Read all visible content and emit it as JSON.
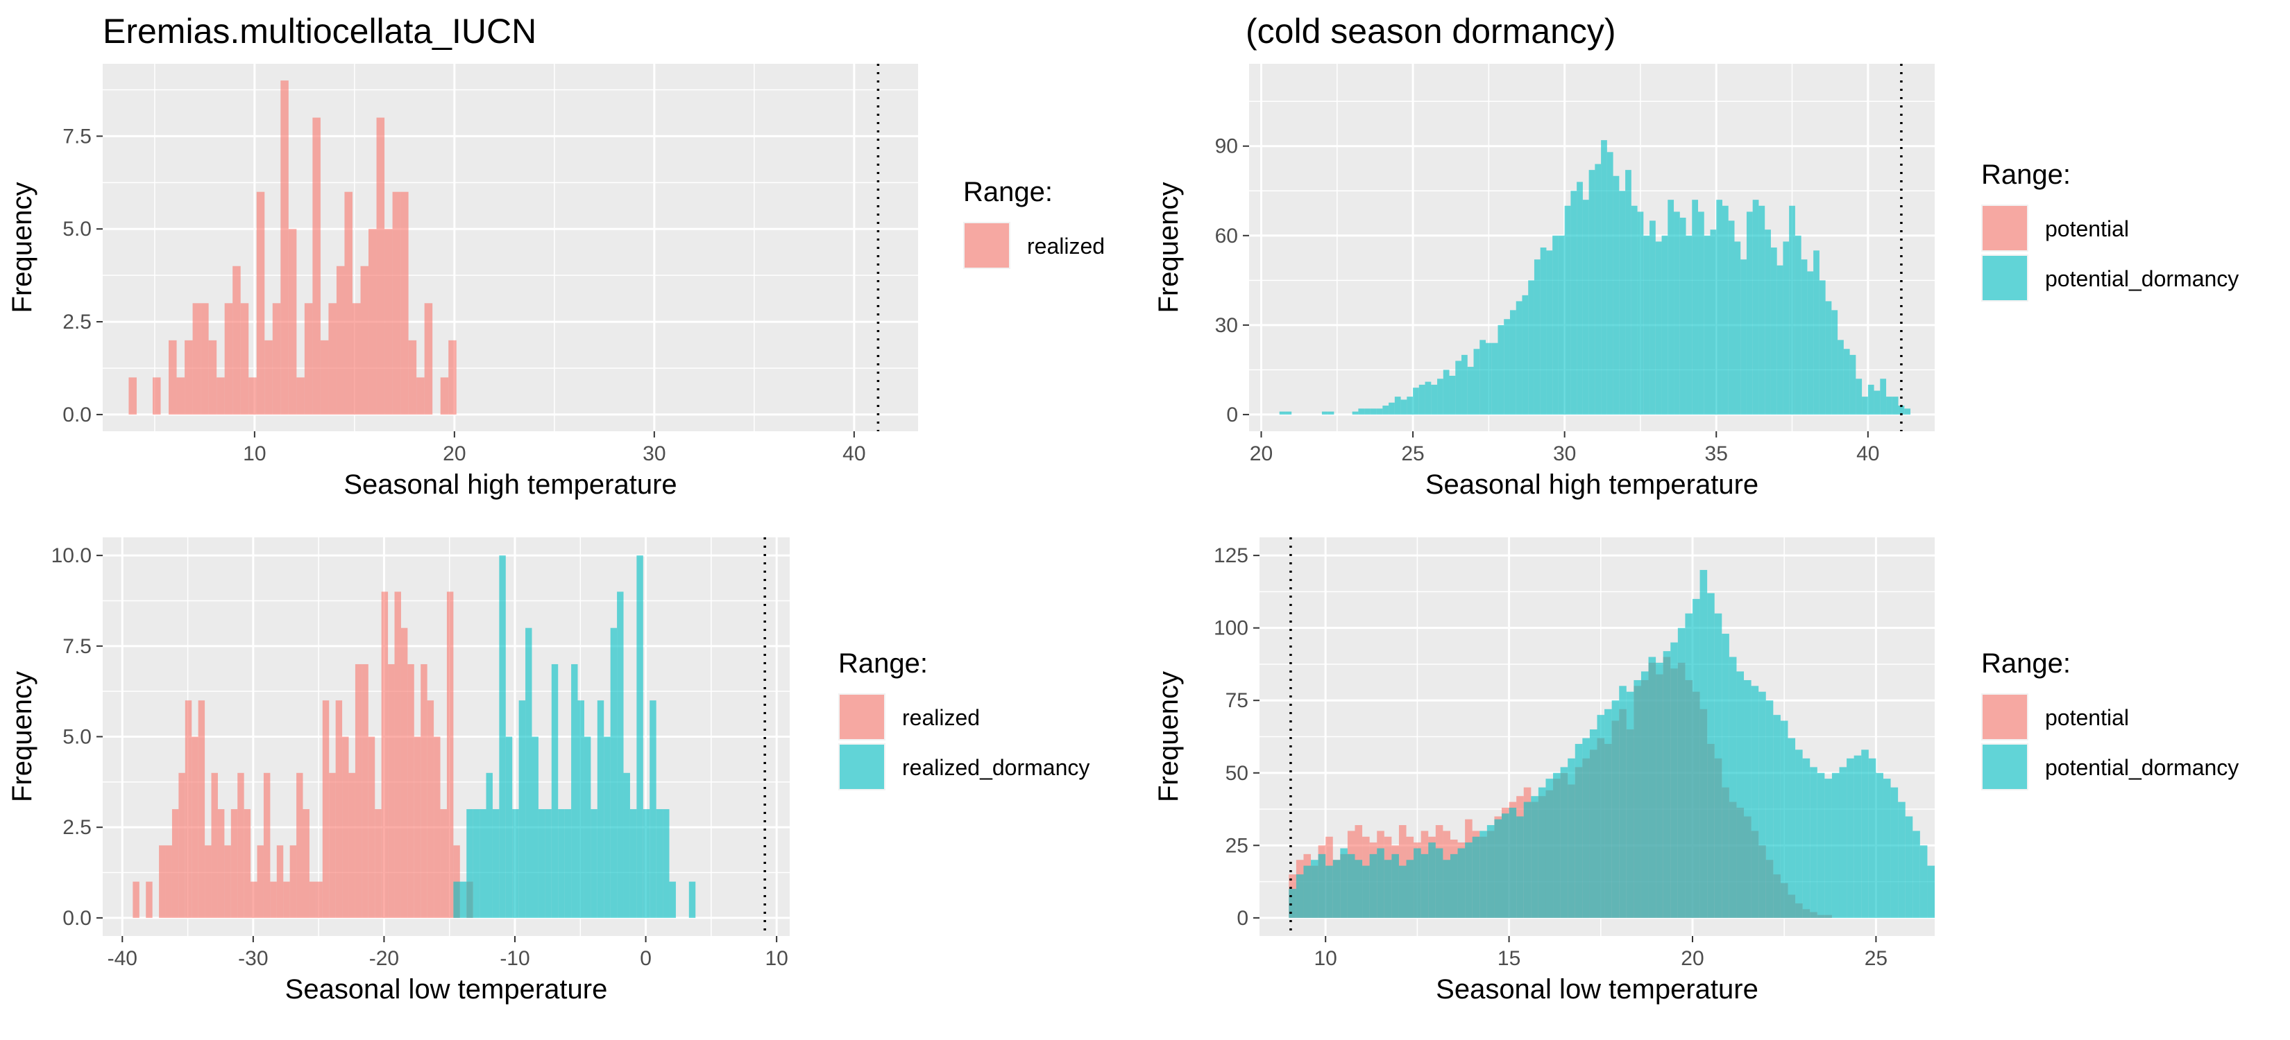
{
  "titles": {
    "left": "Eremias.multiocellata_IUCN",
    "right": "(cold season dormancy)"
  },
  "colors": {
    "realized": "#f8766d",
    "realized_dormancy": "#00bfc4",
    "potential": "#f8766d",
    "potential_dormancy": "#00bfc4",
    "panel_bg": "#ebebeb",
    "grid": "#ffffff"
  },
  "chart_data": [
    {
      "id": "p1",
      "type": "histogram",
      "xlabel": "Seasonal high temperature",
      "ylabel": "Frequency",
      "xlim": [
        2.4,
        43.2
      ],
      "ylim": [
        -0.45,
        9.45
      ],
      "xticks": [
        {
          "v": 10,
          "l": "10"
        },
        {
          "v": 20,
          "l": "20"
        },
        {
          "v": 30,
          "l": "30"
        },
        {
          "v": 40,
          "l": "40"
        }
      ],
      "yticks": [
        {
          "v": 0,
          "l": "0.0"
        },
        {
          "v": 2.5,
          "l": "2.5"
        },
        {
          "v": 5,
          "l": "5.0"
        },
        {
          "v": 7.5,
          "l": "7.5"
        }
      ],
      "vline": 41.2,
      "bin_start": 3.7,
      "bin_width": 0.4,
      "legend": {
        "title": "Range:",
        "labels": [
          "realized"
        ]
      },
      "series": [
        {
          "name": "realized",
          "color": "#f8766d",
          "values": [
            1,
            0,
            0,
            1,
            0,
            2,
            1,
            2,
            3,
            3,
            2,
            1,
            3,
            4,
            3,
            1,
            6,
            2,
            3,
            9,
            5,
            1,
            3,
            8,
            2,
            3,
            4,
            6,
            3,
            4,
            5,
            8,
            5,
            6,
            6,
            2,
            1,
            3,
            0,
            1,
            2
          ]
        }
      ]
    },
    {
      "id": "p2",
      "type": "histogram",
      "xlabel": "Seasonal high temperature",
      "ylabel": "Frequency",
      "xlim": [
        19.6,
        42.2
      ],
      "ylim": [
        -5.6,
        117.6
      ],
      "xticks": [
        {
          "v": 20,
          "l": "20"
        },
        {
          "v": 25,
          "l": "25"
        },
        {
          "v": 30,
          "l": "30"
        },
        {
          "v": 35,
          "l": "35"
        },
        {
          "v": 40,
          "l": "40"
        }
      ],
      "yticks": [
        {
          "v": 0,
          "l": "0"
        },
        {
          "v": 30,
          "l": "30"
        },
        {
          "v": 60,
          "l": "60"
        },
        {
          "v": 90,
          "l": "90"
        }
      ],
      "vline": 41.1,
      "bin_start": 20.4,
      "bin_width": 0.2,
      "legend": {
        "title": "Range:",
        "labels": [
          "potential",
          "potential_dormancy"
        ]
      },
      "series": [
        {
          "name": "potential",
          "color": "#f8766d",
          "values": [
            0,
            0,
            0,
            0,
            0,
            0,
            0,
            0,
            0,
            0,
            0,
            0,
            0,
            0,
            0,
            0,
            0,
            0,
            0,
            0,
            0,
            0,
            0,
            0,
            0,
            0,
            0,
            0,
            0,
            0,
            0,
            0,
            0,
            0,
            0,
            0,
            0,
            0,
            0,
            0,
            0,
            0,
            0,
            0,
            0,
            0,
            0,
            0,
            0,
            0,
            0,
            0,
            0,
            0,
            0,
            0,
            0,
            0,
            0,
            0,
            0,
            0,
            0,
            0,
            0,
            0,
            0,
            0,
            0,
            0,
            0,
            0,
            0,
            0,
            0,
            0,
            0,
            0,
            0,
            0,
            0,
            0,
            0,
            0,
            0,
            0,
            0,
            0,
            0,
            0,
            0,
            0,
            0,
            0,
            0,
            0,
            0,
            0,
            0,
            0,
            0,
            0,
            0,
            0,
            0
          ]
        },
        {
          "name": "potential_dormancy",
          "color": "#00bfc4",
          "values": [
            0,
            1,
            1,
            0,
            0,
            0,
            0,
            0,
            1,
            1,
            0,
            0,
            0,
            1,
            2,
            2,
            2,
            2,
            3,
            4,
            6,
            5,
            6,
            9,
            10,
            11,
            10,
            12,
            15,
            13,
            18,
            20,
            16,
            22,
            25,
            24,
            24,
            30,
            32,
            35,
            38,
            40,
            45,
            52,
            56,
            55,
            60,
            60,
            70,
            75,
            78,
            72,
            82,
            84,
            92,
            88,
            80,
            75,
            82,
            70,
            68,
            60,
            65,
            58,
            60,
            72,
            68,
            66,
            60,
            72,
            68,
            60,
            62,
            72,
            70,
            65,
            58,
            52,
            68,
            72,
            70,
            62,
            56,
            50,
            58,
            70,
            60,
            52,
            48,
            55,
            45,
            38,
            35,
            25,
            22,
            20,
            12,
            6,
            10,
            8,
            12,
            6,
            6,
            3,
            2
          ]
        }
      ]
    },
    {
      "id": "p3",
      "type": "histogram",
      "xlabel": "Seasonal low temperature",
      "ylabel": "Frequency",
      "xlim": [
        -41.5,
        11
      ],
      "ylim": [
        -0.5,
        10.5
      ],
      "xticks": [
        {
          "v": -40,
          "l": "-40"
        },
        {
          "v": -30,
          "l": "-30"
        },
        {
          "v": -20,
          "l": "-20"
        },
        {
          "v": -10,
          "l": "-10"
        },
        {
          "v": 0,
          "l": "0"
        },
        {
          "v": 10,
          "l": "10"
        }
      ],
      "yticks": [
        {
          "v": 0,
          "l": "0.0"
        },
        {
          "v": 2.5,
          "l": "2.5"
        },
        {
          "v": 5,
          "l": "5.0"
        },
        {
          "v": 7.5,
          "l": "7.5"
        },
        {
          "v": 10,
          "l": "10.0"
        }
      ],
      "vline": 9.1,
      "bin_start": -39.2,
      "bin_width": 0.5,
      "legend": {
        "title": "Range:",
        "labels": [
          "realized",
          "realized_dormancy"
        ]
      },
      "series": [
        {
          "name": "realized",
          "color": "#f8766d",
          "values": [
            1,
            0,
            1,
            0,
            2,
            2,
            3,
            4,
            6,
            5,
            6,
            2,
            4,
            3,
            2,
            3,
            4,
            3,
            1,
            2,
            4,
            1,
            2,
            1,
            2,
            4,
            3,
            1,
            1,
            6,
            4,
            6,
            5,
            4,
            7,
            7,
            5,
            3,
            9,
            7,
            9,
            8,
            7,
            5,
            7,
            6,
            5,
            3,
            9,
            2,
            0,
            1,
            0,
            0,
            0,
            0,
            0,
            0,
            0,
            0,
            0,
            0,
            0,
            0,
            0,
            0,
            0,
            0,
            0,
            0,
            0,
            0,
            0,
            0,
            0,
            0,
            0,
            0,
            0,
            0,
            0,
            0,
            0,
            0,
            0,
            0,
            0
          ]
        },
        {
          "name": "realized_dormancy",
          "color": "#00bfc4",
          "values": [
            0,
            0,
            0,
            0,
            0,
            0,
            0,
            0,
            0,
            0,
            0,
            0,
            0,
            0,
            0,
            0,
            0,
            0,
            0,
            0,
            0,
            0,
            0,
            0,
            0,
            0,
            0,
            0,
            0,
            0,
            0,
            0,
            0,
            0,
            0,
            0,
            0,
            0,
            0,
            0,
            0,
            0,
            0,
            0,
            0,
            0,
            0,
            0,
            0,
            1,
            1,
            3,
            3,
            3,
            4,
            3,
            10,
            5,
            3,
            6,
            8,
            5,
            3,
            3,
            7,
            3,
            3,
            7,
            6,
            5,
            3,
            6,
            5,
            8,
            9,
            4,
            3,
            10,
            3,
            6,
            3,
            3,
            1,
            0,
            0,
            1,
            0
          ]
        }
      ]
    },
    {
      "id": "p4",
      "type": "histogram",
      "xlabel": "Seasonal low temperature",
      "ylabel": "Frequency",
      "xlim": [
        8.2,
        26.6
      ],
      "ylim": [
        -6.25,
        131.25
      ],
      "xticks": [
        {
          "v": 10,
          "l": "10"
        },
        {
          "v": 15,
          "l": "15"
        },
        {
          "v": 20,
          "l": "20"
        },
        {
          "v": 25,
          "l": "25"
        }
      ],
      "yticks": [
        {
          "v": 0,
          "l": "0"
        },
        {
          "v": 25,
          "l": "25"
        },
        {
          "v": 50,
          "l": "50"
        },
        {
          "v": 75,
          "l": "75"
        },
        {
          "v": 100,
          "l": "100"
        },
        {
          "v": 125,
          "l": "125"
        }
      ],
      "vline": 9.05,
      "bin_start": 9.0,
      "bin_width": 0.2,
      "legend": {
        "title": "Range:",
        "labels": [
          "potential",
          "potential_dormancy"
        ]
      },
      "series": [
        {
          "name": "potential",
          "color": "#f8766d",
          "values": [
            15,
            20,
            22,
            18,
            25,
            28,
            20,
            22,
            30,
            32,
            28,
            26,
            30,
            28,
            25,
            32,
            28,
            26,
            30,
            28,
            32,
            30,
            27,
            26,
            34,
            30,
            28,
            30,
            35,
            38,
            40,
            42,
            45,
            40,
            42,
            44,
            48,
            50,
            46,
            52,
            55,
            58,
            62,
            60,
            68,
            72,
            65,
            80,
            82,
            88,
            84,
            90,
            86,
            88,
            82,
            78,
            72,
            60,
            55,
            45,
            40,
            38,
            35,
            30,
            25,
            20,
            15,
            12,
            8,
            5,
            3,
            2,
            1,
            1,
            0,
            0,
            0,
            0,
            0,
            0,
            0,
            0,
            0,
            0,
            0,
            0,
            0,
            0
          ]
        },
        {
          "name": "potential_dormancy",
          "color": "#00bfc4",
          "values": [
            10,
            15,
            18,
            20,
            22,
            18,
            20,
            24,
            22,
            20,
            18,
            22,
            24,
            20,
            22,
            18,
            20,
            24,
            22,
            26,
            24,
            20,
            22,
            24,
            26,
            28,
            30,
            32,
            34,
            36,
            38,
            35,
            40,
            42,
            45,
            48,
            50,
            52,
            55,
            60,
            62,
            65,
            70,
            72,
            75,
            80,
            78,
            82,
            85,
            90,
            88,
            92,
            95,
            100,
            105,
            110,
            120,
            112,
            105,
            98,
            90,
            85,
            82,
            80,
            78,
            75,
            70,
            68,
            62,
            58,
            55,
            52,
            50,
            48,
            50,
            52,
            55,
            56,
            58,
            55,
            50,
            48,
            45,
            40,
            35,
            30,
            25,
            18
          ]
        }
      ]
    }
  ]
}
